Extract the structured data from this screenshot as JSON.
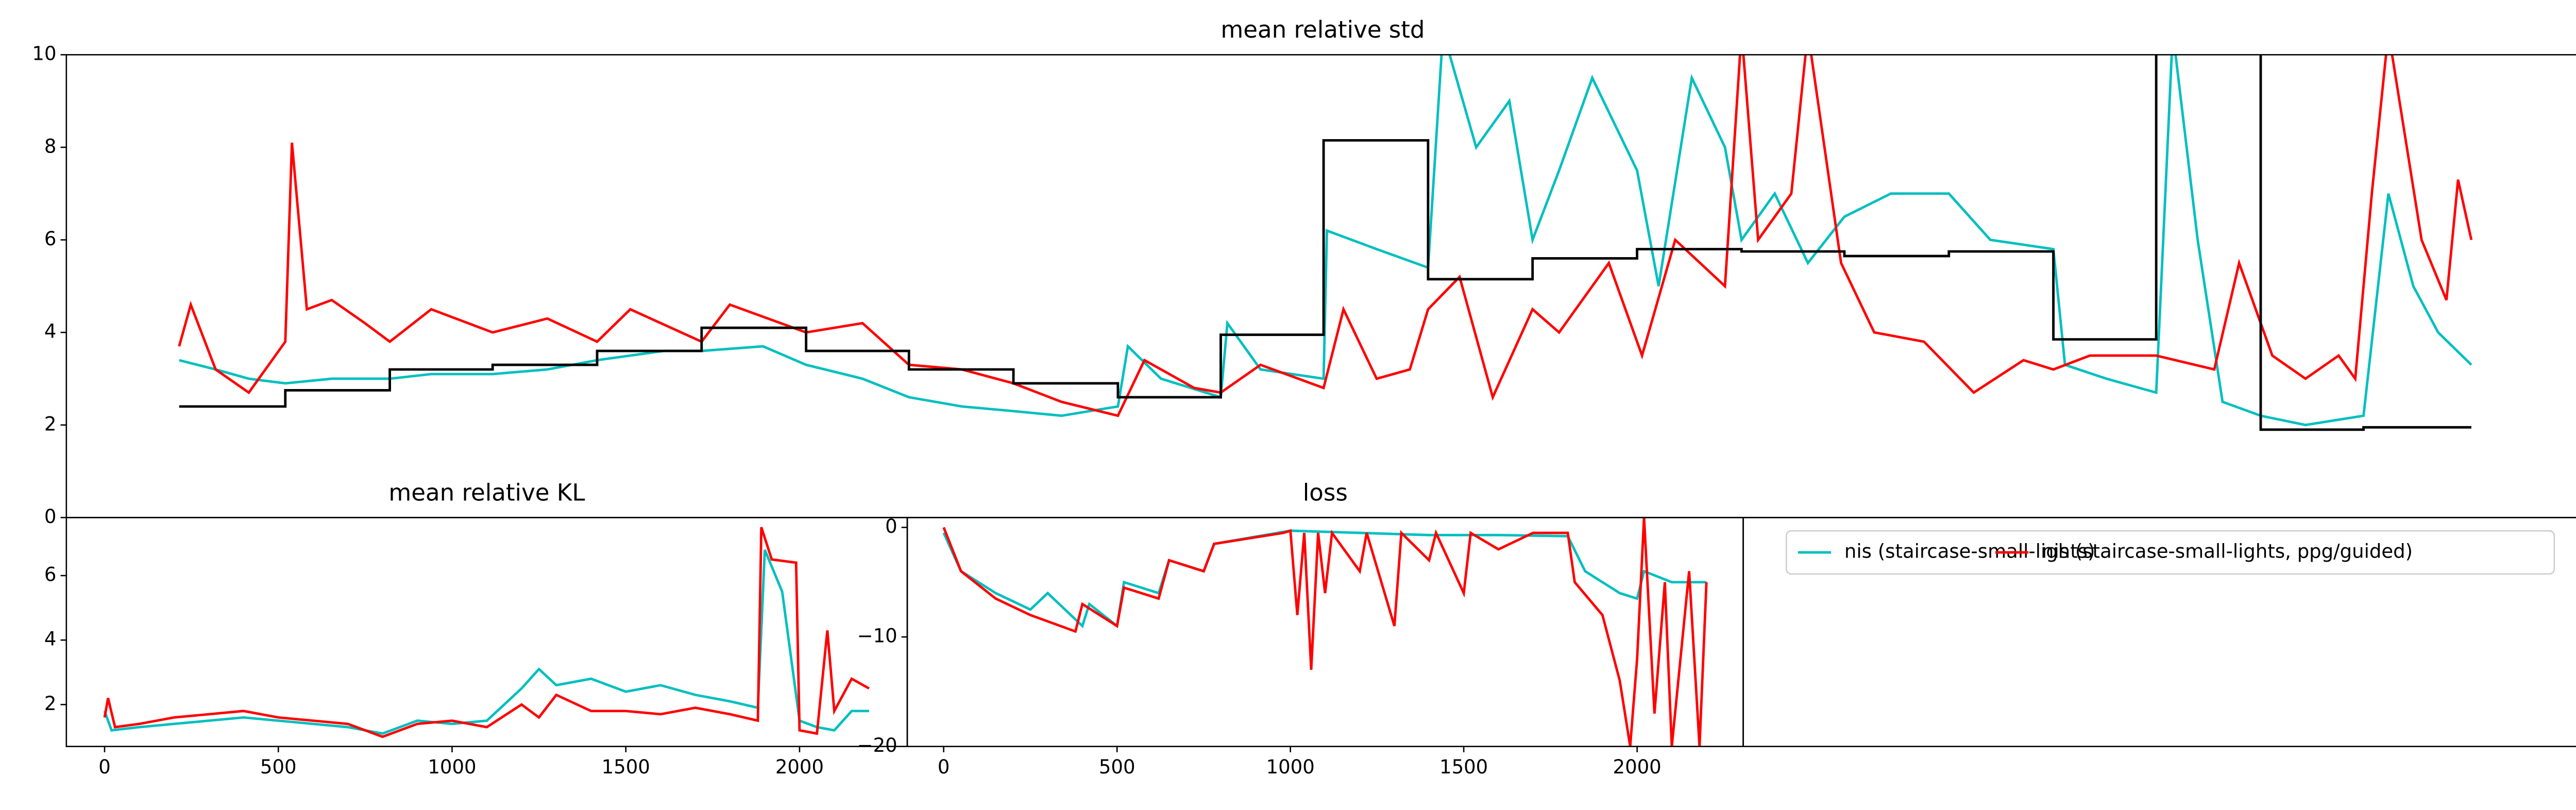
{
  "chart_data": [
    {
      "type": "line",
      "title": "mean relative std",
      "xlim": [
        0,
        1515
      ],
      "ylim": [
        0,
        10
      ],
      "yticks": [
        0,
        2,
        4,
        6,
        8,
        10
      ],
      "series": [
        {
          "color": "#00bfbf",
          "x": [
            68,
            90,
            110,
            132,
            160,
            195,
            220,
            257,
            290,
            320,
            360,
            383,
            420,
            446,
            480,
            508,
            540,
            571,
            600,
            634,
            640,
            660,
            696,
            700,
            720,
            758,
            760,
            790,
            821,
            830,
            850,
            870,
            884,
            900,
            920,
            947,
            960,
            980,
            1000,
            1010,
            1030,
            1050,
            1072,
            1100,
            1135,
            1160,
            1198,
            1205,
            1230,
            1260,
            1270,
            1285,
            1300,
            1323,
            1350,
            1385,
            1400,
            1415,
            1430,
            1450
          ],
          "values": [
            3.4,
            3.2,
            3.0,
            2.9,
            3.0,
            3.0,
            3.1,
            3.1,
            3.2,
            3.4,
            3.6,
            3.6,
            3.7,
            3.3,
            3.0,
            2.6,
            2.4,
            2.3,
            2.2,
            2.4,
            3.7,
            3.0,
            2.6,
            4.2,
            3.2,
            3.0,
            6.2,
            5.8,
            5.4,
            10.5,
            8.0,
            9.0,
            6.0,
            7.5,
            9.5,
            7.5,
            5.0,
            9.5,
            8.0,
            6.0,
            7.0,
            5.5,
            6.5,
            7.0,
            7.0,
            6.0,
            5.8,
            3.3,
            3.0,
            2.7,
            10.5,
            6.0,
            2.5,
            2.2,
            2.0,
            2.2,
            7.0,
            5.0,
            4.0,
            3.3
          ]
        },
        {
          "color": "#ff0000",
          "x": [
            68,
            75,
            90,
            110,
            132,
            136,
            145,
            160,
            180,
            195,
            220,
            257,
            290,
            320,
            340,
            383,
            400,
            446,
            480,
            508,
            540,
            571,
            600,
            634,
            650,
            680,
            696,
            720,
            758,
            770,
            790,
            810,
            821,
            840,
            860,
            884,
            900,
            930,
            950,
            970,
            1000,
            1010,
            1020,
            1040,
            1050,
            1070,
            1090,
            1120,
            1150,
            1180,
            1198,
            1220,
            1260,
            1295,
            1310,
            1330,
            1350,
            1370,
            1380,
            1390,
            1400,
            1420,
            1435,
            1442,
            1450
          ],
          "values": [
            3.7,
            4.6,
            3.2,
            2.7,
            3.8,
            8.1,
            4.5,
            4.7,
            4.2,
            3.8,
            4.5,
            4.0,
            4.3,
            3.8,
            4.5,
            3.8,
            4.6,
            4.0,
            4.2,
            3.3,
            3.2,
            2.9,
            2.5,
            2.2,
            3.4,
            2.8,
            2.7,
            3.3,
            2.8,
            4.5,
            3.0,
            3.2,
            4.5,
            5.2,
            2.6,
            4.5,
            4.0,
            5.5,
            3.5,
            6.0,
            5.0,
            10.5,
            6.0,
            7.0,
            10.5,
            5.5,
            4.0,
            3.8,
            2.7,
            3.4,
            3.2,
            3.5,
            3.5,
            3.2,
            5.5,
            3.5,
            3.0,
            3.5,
            3.0,
            7.0,
            10.5,
            6.0,
            4.7,
            7.3,
            6.0
          ]
        },
        {
          "color": "#000000",
          "x": [
            68,
            132,
            132,
            195,
            195,
            257,
            257,
            320,
            320,
            383,
            383,
            446,
            446,
            508,
            508,
            571,
            571,
            634,
            634,
            696,
            696,
            758,
            758,
            821,
            821,
            884,
            884,
            947,
            947,
            1010,
            1010,
            1072,
            1072,
            1135,
            1135,
            1198,
            1198,
            1260,
            1260,
            1323,
            1323,
            1385,
            1385,
            1450
          ],
          "values": [
            2.4,
            2.4,
            2.75,
            2.75,
            3.2,
            3.2,
            3.3,
            3.3,
            3.6,
            3.6,
            4.1,
            4.1,
            3.6,
            3.6,
            3.2,
            3.2,
            2.9,
            2.9,
            2.6,
            2.6,
            3.95,
            3.95,
            8.15,
            8.15,
            5.15,
            5.15,
            5.6,
            5.6,
            5.8,
            5.8,
            5.75,
            5.75,
            5.65,
            5.65,
            5.75,
            5.75,
            3.85,
            3.85,
            12,
            12,
            1.9,
            1.9,
            1.95,
            1.95
          ]
        }
      ]
    },
    {
      "type": "line",
      "title": "mean relative KL",
      "xlim": [
        -110,
        2310
      ],
      "ylim": [
        0.7,
        7.8
      ],
      "xticks": [
        0,
        500,
        1000,
        1500,
        2000
      ],
      "yticks": [
        2,
        4,
        6
      ],
      "series": [
        {
          "color": "#00bfbf",
          "x": [
            0,
            20,
            100,
            200,
            300,
            400,
            500,
            600,
            700,
            800,
            900,
            1000,
            1100,
            1200,
            1250,
            1300,
            1400,
            1500,
            1600,
            1700,
            1800,
            1880,
            1900,
            1950,
            2000,
            2050,
            2100,
            2150,
            2200
          ],
          "values": [
            1.8,
            1.2,
            1.3,
            1.4,
            1.5,
            1.6,
            1.5,
            1.4,
            1.3,
            1.1,
            1.5,
            1.4,
            1.5,
            2.5,
            3.1,
            2.6,
            2.8,
            2.4,
            2.6,
            2.3,
            2.1,
            1.9,
            6.8,
            5.5,
            1.5,
            1.3,
            1.2,
            1.8,
            1.8
          ]
        },
        {
          "color": "#ff0000",
          "x": [
            0,
            10,
            30,
            100,
            200,
            300,
            400,
            500,
            600,
            700,
            800,
            900,
            1000,
            1100,
            1200,
            1250,
            1300,
            1400,
            1500,
            1600,
            1700,
            1800,
            1880,
            1890,
            1920,
            1990,
            2000,
            2050,
            2080,
            2100,
            2150,
            2200
          ],
          "values": [
            1.6,
            2.2,
            1.3,
            1.4,
            1.6,
            1.7,
            1.8,
            1.6,
            1.5,
            1.4,
            1.0,
            1.4,
            1.5,
            1.3,
            2.0,
            1.6,
            2.3,
            1.8,
            1.8,
            1.7,
            1.9,
            1.7,
            1.5,
            7.5,
            6.5,
            6.4,
            1.2,
            1.1,
            4.3,
            1.8,
            2.8,
            2.5
          ]
        }
      ]
    },
    {
      "type": "line",
      "title": "loss",
      "xlim": [
        -105,
        2306
      ],
      "ylim": [
        -20,
        0.9
      ],
      "xticks": [
        0,
        500,
        1000,
        1500,
        2000
      ],
      "yticks": [
        {
          "value": -20,
          "label": "−20"
        },
        {
          "value": -10,
          "label": "−10"
        },
        0
      ],
      "series": [
        {
          "color": "#00bfbf",
          "x": [
            0,
            50,
            150,
            250,
            300,
            400,
            420,
            500,
            520,
            620,
            650,
            750,
            780,
            1000,
            1200,
            1400,
            1600,
            1800,
            1850,
            1900,
            1950,
            2000,
            2020,
            2100,
            2200
          ],
          "values": [
            -0.5,
            -4,
            -6,
            -7.5,
            -6,
            -9,
            -7,
            -9,
            -5,
            -6,
            -3,
            -4,
            -1.5,
            -0.3,
            -0.5,
            -0.7,
            -0.7,
            -0.8,
            -4,
            -5,
            -6,
            -6.5,
            -4,
            -5,
            -5
          ]
        },
        {
          "color": "#ff0000",
          "x": [
            0,
            50,
            150,
            250,
            380,
            400,
            500,
            520,
            620,
            650,
            750,
            780,
            980,
            1000,
            1020,
            1040,
            1060,
            1080,
            1100,
            1120,
            1200,
            1220,
            1300,
            1320,
            1400,
            1420,
            1500,
            1520,
            1600,
            1700,
            1800,
            1820,
            1900,
            1950,
            1980,
            2000,
            2020,
            2050,
            2080,
            2100,
            2150,
            2180,
            2200
          ],
          "values": [
            0,
            -4,
            -6.5,
            -8,
            -9.5,
            -7,
            -9,
            -5.5,
            -6.5,
            -3,
            -4,
            -1.5,
            -0.5,
            -0.3,
            -8,
            -0.5,
            -13,
            -0.5,
            -6,
            -0.5,
            -4,
            -0.5,
            -9,
            -0.5,
            -3,
            -0.5,
            -6,
            -0.5,
            -2,
            -0.5,
            -0.5,
            -5,
            -8,
            -14,
            -20,
            -12,
            0.9,
            -17,
            -5,
            -20,
            -4,
            -20,
            -5
          ]
        }
      ]
    },
    {
      "type": "legend",
      "legend": "upper left",
      "series": [
        {
          "name": "nis (staircase-small-lights)",
          "color": "#00bfbf"
        },
        {
          "name": "nis (staircase-small-lights, ppg/guided)",
          "color": "#ff0000"
        }
      ]
    }
  ]
}
